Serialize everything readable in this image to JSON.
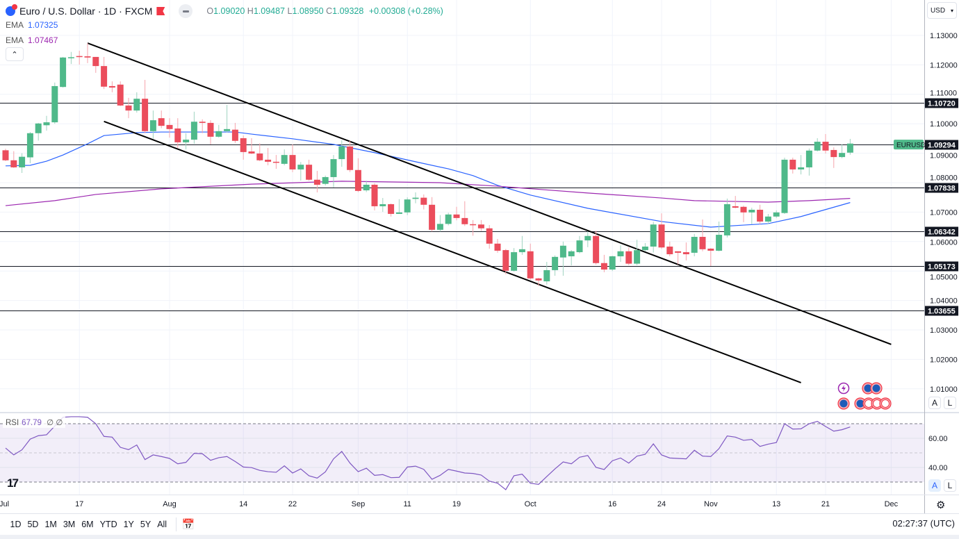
{
  "header": {
    "symbol_title": "Euro / U.S. Dollar · 1D · FXCM",
    "ohlc": {
      "o_label": "O",
      "o": "1.09020",
      "h_label": "H",
      "h": "1.09487",
      "l_label": "L",
      "l": "1.08950",
      "c_label": "C",
      "c": "1.09328",
      "change": "+0.00308 (+0.28%)"
    },
    "ema1": {
      "label": "EMA",
      "value": "1.07325",
      "color": "#2962ff"
    },
    "ema2": {
      "label": "EMA",
      "value": "1.07467",
      "color": "#9c27b0"
    },
    "collapse_icon": "chevron-up-icon"
  },
  "rsi_legend": {
    "label": "RSI",
    "value": "67.79",
    "extra1": "∅",
    "extra2": "∅"
  },
  "price_axis": {
    "currency": "USD",
    "ticks": [
      "1.13000",
      "1.12000",
      "1.11000",
      "1.10000",
      "1.09000",
      "1.08000",
      "1.07000",
      "1.06000",
      "1.05000",
      "1.04000",
      "1.03000",
      "1.02000",
      "1.01000"
    ],
    "auto_label": "A",
    "log_label": "L"
  },
  "rsi_axis": {
    "ticks": [
      "60.00",
      "40.00"
    ],
    "auto_label": "A",
    "log_label": "L"
  },
  "levels": [
    "1.10720",
    "1.09294",
    "1.07838",
    "1.06342",
    "1.05173",
    "1.03655"
  ],
  "symbol_tag": "EURUSD",
  "colors": {
    "up": "#26a69a",
    "up_fill": "#4fb98a",
    "down": "#ef5350",
    "down_fill": "#eb4d5c",
    "ema_fast": "#2962ff",
    "ema_slow": "#9c27b0",
    "rsi": "#7e57c2"
  },
  "time_axis": [
    {
      "label": "Jul",
      "date": "Jul 3"
    },
    {
      "label": "17",
      "date": "Jul 17"
    },
    {
      "label": "Aug",
      "date": "Aug 1"
    },
    {
      "label": "14",
      "date": "Aug 14"
    },
    {
      "label": "22",
      "date": "Aug 22"
    },
    {
      "label": "Sep",
      "date": "Sep 1"
    },
    {
      "label": "11",
      "date": "Sep 11"
    },
    {
      "label": "19",
      "date": "Sep 19"
    },
    {
      "label": "Oct",
      "date": "Oct 2"
    },
    {
      "label": "16",
      "date": "Oct 16"
    },
    {
      "label": "24",
      "date": "Oct 24"
    },
    {
      "label": "Nov",
      "date": "Nov 1"
    },
    {
      "label": "13",
      "date": "Nov 13"
    },
    {
      "label": "21",
      "date": "Nov 21"
    },
    {
      "label": "Dec",
      "date": "Dec 1"
    }
  ],
  "toolbar": {
    "ranges": [
      "1D",
      "5D",
      "1M",
      "3M",
      "6M",
      "YTD",
      "1Y",
      "5Y",
      "All"
    ],
    "goto_icon": "calendar-goto-icon"
  },
  "clock": "02:27:37 (UTC)",
  "chart_data": {
    "type": "candlestick",
    "ylim": [
      1.005,
      1.135
    ],
    "candles": [
      [
        "Jul 4",
        1.091,
        1.0915,
        1.0873,
        1.0876
      ],
      [
        "Jul 5",
        1.0876,
        1.0907,
        1.085,
        1.0852
      ],
      [
        "Jul 6",
        1.0852,
        1.09,
        1.0833,
        1.0888
      ],
      [
        "Jul 7",
        1.0886,
        1.0972,
        1.0866,
        1.0968
      ],
      [
        "Jul 10",
        1.0968,
        1.1003,
        1.0943,
        1.1001
      ],
      [
        "Jul 11",
        1.0995,
        1.1027,
        1.0977,
        1.1005
      ],
      [
        "Jul 12",
        1.1005,
        1.114,
        1.1,
        1.1128
      ],
      [
        "Jul 13",
        1.1125,
        1.1227,
        1.1123,
        1.1225
      ],
      [
        "Jul 14",
        1.1225,
        1.1244,
        1.1203,
        1.1226
      ],
      [
        "Jul 17",
        1.123,
        1.1248,
        1.1201,
        1.1229
      ],
      [
        "Jul 18",
        1.1229,
        1.1274,
        1.1206,
        1.1225
      ],
      [
        "Jul 19",
        1.1227,
        1.1227,
        1.1173,
        1.1196
      ],
      [
        "Jul 20",
        1.1196,
        1.1227,
        1.1118,
        1.1126
      ],
      [
        "Jul 21",
        1.1128,
        1.1144,
        1.1107,
        1.1123
      ],
      [
        "Jul 24",
        1.1133,
        1.1144,
        1.106,
        1.1062
      ],
      [
        "Jul 25",
        1.1062,
        1.1088,
        1.1019,
        1.1045
      ],
      [
        "Jul 26",
        1.1045,
        1.1107,
        1.1038,
        1.1085
      ],
      [
        "Jul 27",
        1.1085,
        1.1149,
        1.0968,
        1.0975
      ],
      [
        "Jul 28",
        1.0975,
        1.1045,
        1.0949,
        1.1012
      ],
      [
        "Jul 31",
        1.1019,
        1.1045,
        1.0985,
        1.0993
      ],
      [
        "Aug 1",
        1.0996,
        1.1019,
        1.0953,
        1.0982
      ],
      [
        "Aug 2",
        1.0984,
        1.1019,
        1.0918,
        1.0937
      ],
      [
        "Aug 3",
        1.0937,
        1.0968,
        1.0913,
        1.0946
      ],
      [
        "Aug 4",
        1.0946,
        1.1041,
        1.0932,
        1.1007
      ],
      [
        "Aug 7",
        1.1007,
        1.1015,
        1.0968,
        1.1003
      ],
      [
        "Aug 8",
        1.1003,
        1.1012,
        1.093,
        1.0956
      ],
      [
        "Aug 9",
        1.0956,
        1.0996,
        1.0953,
        1.0975
      ],
      [
        "Aug 10",
        1.0975,
        1.1064,
        1.097,
        1.0982
      ],
      [
        "Aug 11",
        1.098,
        1.1003,
        1.0935,
        1.0942
      ],
      [
        "Aug 14",
        1.0951,
        1.096,
        1.0878,
        1.0904
      ],
      [
        "Aug 15",
        1.0906,
        1.0951,
        1.0897,
        1.0899
      ],
      [
        "Aug 16",
        1.0899,
        1.0934,
        1.0873,
        1.0876
      ],
      [
        "Aug 17",
        1.0878,
        1.0918,
        1.0859,
        1.0871
      ],
      [
        "Aug 18",
        1.0871,
        1.0894,
        1.0847,
        1.0868
      ],
      [
        "Aug 21",
        1.0864,
        1.0913,
        1.0859,
        1.0894
      ],
      [
        "Aug 22",
        1.0894,
        1.093,
        1.0836,
        1.0845
      ],
      [
        "Aug 23",
        1.0845,
        1.087,
        1.0807,
        1.0861
      ],
      [
        "Aug 24",
        1.0861,
        1.0878,
        1.0807,
        1.081
      ],
      [
        "Aug 25",
        1.081,
        1.084,
        1.0767,
        1.0793
      ],
      [
        "Aug 28",
        1.0796,
        1.0824,
        1.0791,
        1.0819
      ],
      [
        "Aug 29",
        1.0819,
        1.0894,
        1.0784,
        1.088
      ],
      [
        "Aug 30",
        1.088,
        1.0944,
        1.0854,
        1.0923
      ],
      [
        "Aug 31",
        1.0923,
        1.0942,
        1.0836,
        1.0843
      ],
      [
        "Sep 1",
        1.0843,
        1.0883,
        1.0768,
        1.0772
      ],
      [
        "Sep 4",
        1.0774,
        1.0807,
        1.0768,
        1.0793
      ],
      [
        "Sep 5",
        1.0793,
        1.0798,
        1.0706,
        1.072
      ],
      [
        "Sep 6",
        1.072,
        1.0748,
        1.0701,
        1.0727
      ],
      [
        "Sep 7",
        1.0727,
        1.0729,
        1.0685,
        1.0694
      ],
      [
        "Sep 8",
        1.0694,
        1.0744,
        1.0694,
        1.0699
      ],
      [
        "Sep 11",
        1.0699,
        1.075,
        1.069,
        1.0743
      ],
      [
        "Sep 12",
        1.0745,
        1.0767,
        1.073,
        1.0749
      ],
      [
        "Sep 13",
        1.0749,
        1.076,
        1.0709,
        1.0725
      ],
      [
        "Sep 14",
        1.0725,
        1.0751,
        1.0634,
        1.064
      ],
      [
        "Sep 15",
        1.064,
        1.069,
        1.0634,
        1.066
      ],
      [
        "Sep 18",
        1.066,
        1.0698,
        1.0655,
        1.0692
      ],
      [
        "Sep 19",
        1.0692,
        1.0718,
        1.0672,
        1.068
      ],
      [
        "Sep 20",
        1.068,
        1.0737,
        1.0653,
        1.0659
      ],
      [
        "Sep 21",
        1.0659,
        1.0673,
        1.062,
        1.0656
      ],
      [
        "Sep 22",
        1.0658,
        1.0673,
        1.0636,
        1.0645
      ],
      [
        "Sep 25",
        1.0645,
        1.0656,
        1.0576,
        1.0593
      ],
      [
        "Sep 26",
        1.0593,
        1.0609,
        1.0562,
        1.0569
      ],
      [
        "Sep 27",
        1.0571,
        1.0575,
        1.0489,
        1.0501
      ],
      [
        "Sep 28",
        1.0501,
        1.0578,
        1.0498,
        1.0564
      ],
      [
        "Sep 29",
        1.0564,
        1.0619,
        1.0555,
        1.0574
      ],
      [
        "Oct 2",
        1.0567,
        1.0593,
        1.047,
        1.0475
      ],
      [
        "Oct 3",
        1.0475,
        1.0477,
        1.0449,
        1.0468
      ],
      [
        "Oct 4",
        1.0465,
        1.0531,
        1.0454,
        1.0503
      ],
      [
        "Oct 5",
        1.0503,
        1.0553,
        1.0484,
        1.0548
      ],
      [
        "Oct 6",
        1.0546,
        1.06,
        1.0484,
        1.0586
      ],
      [
        "Oct 9",
        1.055,
        1.0571,
        1.0519,
        1.0567
      ],
      [
        "Oct 10",
        1.0564,
        1.0619,
        1.056,
        1.0604
      ],
      [
        "Oct 11",
        1.0604,
        1.0635,
        1.0581,
        1.0619
      ],
      [
        "Oct 12",
        1.0619,
        1.0637,
        1.0522,
        1.0527
      ],
      [
        "Oct 13",
        1.0527,
        1.0555,
        1.0496,
        1.0505
      ],
      [
        "Oct 16",
        1.0505,
        1.0552,
        1.05,
        1.055
      ],
      [
        "Oct 17",
        1.055,
        1.0587,
        1.0531,
        1.0567
      ],
      [
        "Oct 18",
        1.0567,
        1.058,
        1.052,
        1.0525
      ],
      [
        "Oct 19",
        1.0525,
        1.0606,
        1.052,
        1.0571
      ],
      [
        "Oct 20",
        1.0571,
        1.0595,
        1.0567,
        1.0583
      ],
      [
        "Oct 23",
        1.0583,
        1.0667,
        1.0563,
        1.0658
      ],
      [
        "Oct 24",
        1.0658,
        1.0696,
        1.0575,
        1.058
      ],
      [
        "Oct 25",
        1.0583,
        1.06,
        1.055,
        1.0557
      ],
      [
        "Oct 26",
        1.0567,
        1.0567,
        1.0522,
        1.0562
      ],
      [
        "Oct 27",
        1.0564,
        1.0597,
        1.0536,
        1.0557
      ],
      [
        "Oct 30",
        1.0562,
        1.0626,
        1.055,
        1.0616
      ],
      [
        "Oct 31",
        1.0616,
        1.0675,
        1.0567,
        1.0574
      ],
      [
        "Nov 1",
        1.0576,
        1.0578,
        1.0517,
        1.0569
      ],
      [
        "Nov 2",
        1.0569,
        1.0668,
        1.0567,
        1.0623
      ],
      [
        "Nov 3",
        1.0621,
        1.0746,
        1.0614,
        1.0727
      ],
      [
        "Nov 6",
        1.072,
        1.0755,
        1.0713,
        1.0715
      ],
      [
        "Nov 7",
        1.0718,
        1.0722,
        1.0666,
        1.0699
      ],
      [
        "Nov 8",
        1.0699,
        1.0715,
        1.0659,
        1.0708
      ],
      [
        "Nov 9",
        1.0708,
        1.0725,
        1.0659,
        1.0668
      ],
      [
        "Nov 10",
        1.0668,
        1.0694,
        1.0659,
        1.0685
      ],
      [
        "Nov 13",
        1.0685,
        1.0706,
        1.068,
        1.0699
      ],
      [
        "Nov 14",
        1.0697,
        1.0885,
        1.0694,
        1.0878
      ],
      [
        "Nov 15",
        1.0878,
        1.0885,
        1.0831,
        1.0845
      ],
      [
        "Nov 16",
        1.0845,
        1.0894,
        1.0828,
        1.0852
      ],
      [
        "Nov 17",
        1.0852,
        1.0916,
        1.0824,
        1.0909
      ],
      [
        "Nov 20",
        1.0909,
        1.0951,
        1.0906,
        1.0939
      ],
      [
        "Nov 21",
        1.0939,
        1.0965,
        1.0899,
        1.0909
      ],
      [
        "Nov 22",
        1.0911,
        1.092,
        1.085,
        1.0887
      ],
      [
        "Nov 23",
        1.0887,
        1.093,
        1.0883,
        1.0901
      ],
      [
        "Nov 24",
        1.0902,
        1.09487,
        1.0895,
        1.09328
      ]
    ],
    "ema_fast": [
      [
        "Jul 4",
        1.0857
      ],
      [
        "Jul 7",
        1.0859
      ],
      [
        "Jul 11",
        1.0873
      ],
      [
        "Jul 13",
        1.0894
      ],
      [
        "Jul 18",
        1.0932
      ],
      [
        "Jul 20",
        1.096
      ],
      [
        "Jul 26",
        1.097
      ],
      [
        "Jul 31",
        1.0972
      ],
      [
        "Aug 11",
        1.0972
      ],
      [
        "Aug 15",
        1.0965
      ],
      [
        "Aug 22",
        1.0949
      ],
      [
        "Aug 29",
        1.093
      ],
      [
        "Sep 5",
        1.0902
      ],
      [
        "Sep 12",
        1.0871
      ],
      [
        "Sep 18",
        1.0847
      ],
      [
        "Sep 21",
        1.0824
      ],
      [
        "Sep 26",
        1.0791
      ],
      [
        "Oct 2",
        1.0758
      ],
      [
        "Oct 11",
        1.0713
      ],
      [
        "Oct 24",
        1.0668
      ],
      [
        "Nov 1",
        1.0649
      ],
      [
        "Nov 7",
        1.0656
      ],
      [
        "Nov 10",
        1.0661
      ],
      [
        "Nov 16",
        1.0685
      ],
      [
        "Nov 24",
        1.07325
      ]
    ],
    "ema_slow": [
      [
        "Jul 4",
        1.0722
      ],
      [
        "Jul 12",
        1.0739
      ],
      [
        "Jul 19",
        1.076
      ],
      [
        "Jul 31",
        1.0779
      ],
      [
        "Aug 15",
        1.0795
      ],
      [
        "Aug 30",
        1.0805
      ],
      [
        "Sep 15",
        1.08
      ],
      [
        "Sep 26",
        1.0788
      ],
      [
        "Oct 11",
        1.0765
      ],
      [
        "Oct 24",
        1.0748
      ],
      [
        "Oct 30",
        1.0739
      ],
      [
        "Nov 10",
        1.0734
      ],
      [
        "Nov 17",
        1.0739
      ],
      [
        "Nov 24",
        1.07467
      ]
    ],
    "trendlines": [
      {
        "from": [
          "Jul 18",
          1.1274
        ],
        "to": [
          "Dec 1",
          1.0251
        ]
      },
      {
        "from": [
          "Jul 20",
          1.1008
        ],
        "to": [
          "Nov 16",
          1.0121
        ]
      }
    ],
    "rsi": {
      "ylim": [
        20,
        80
      ],
      "bands": [
        70,
        50,
        30
      ],
      "grid": [
        60,
        40
      ],
      "values": [
        53.3,
        48.6,
        52.1,
        59.4,
        61.8,
        62.4,
        68.4,
        74.4,
        74.8,
        74.8,
        74.4,
        70.0,
        61.3,
        60.8,
        53.8,
        52.2,
        55.4,
        45.4,
        48.6,
        47.5,
        46.2,
        42.5,
        43.5,
        49.7,
        49.4,
        44.9,
        46.7,
        47.5,
        44.1,
        40.3,
        39.9,
        38.0,
        37.1,
        36.7,
        41.1,
        36.2,
        39.0,
        34.3,
        32.7,
        37.0,
        45.9,
        51.0,
        43.0,
        37.1,
        39.5,
        34.6,
        35.1,
        33.0,
        33.2,
        40.3,
        40.9,
        38.7,
        31.9,
        34.6,
        38.7,
        37.5,
        36.2,
        35.9,
        34.8,
        30.6,
        29.2,
        24.8,
        34.3,
        35.4,
        29.2,
        28.4,
        33.8,
        39.0,
        43.8,
        42.5,
        47.0,
        48.2,
        40.1,
        38.6,
        44.6,
        46.5,
        43.0,
        47.8,
        49.0,
        56.2,
        48.6,
        46.5,
        46.2,
        45.9,
        51.8,
        47.8,
        47.5,
        52.9,
        61.6,
        60.8,
        58.6,
        59.2,
        54.4,
        56.0,
        57.1,
        70.0,
        66.3,
        66.5,
        70.0,
        71.6,
        68.1,
        64.9,
        65.9,
        67.79
      ]
    },
    "events": [
      {
        "type": "lightning-icon",
        "row": 1
      },
      {
        "type": "eu-flag-icon",
        "row": 1
      },
      {
        "type": "eu-flag-icon",
        "row": 1
      },
      {
        "type": "eu-flag-icon",
        "row": 2
      },
      {
        "type": "eu-flag-icon",
        "row": 2
      },
      {
        "type": "us-flag-icon",
        "row": 2
      },
      {
        "type": "us-flag-icon",
        "row": 2
      },
      {
        "type": "us-flag-icon",
        "row": 2
      }
    ]
  }
}
